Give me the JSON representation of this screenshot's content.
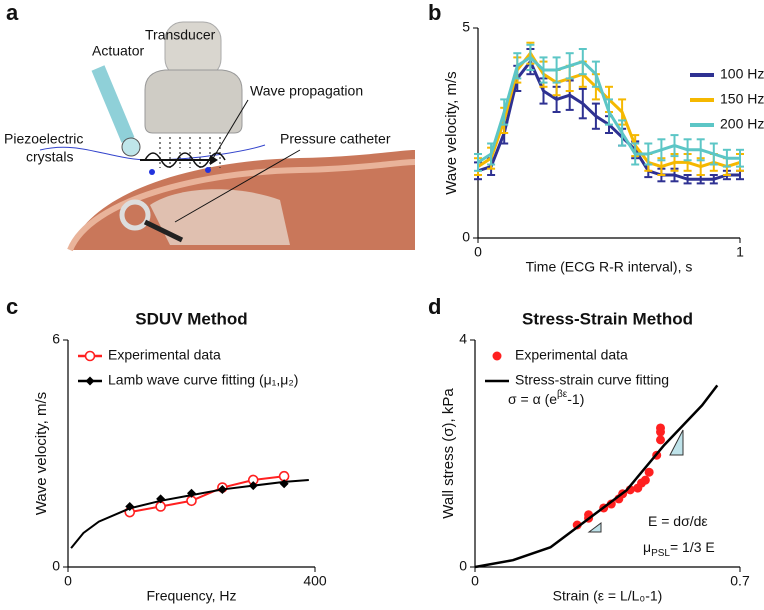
{
  "panel_labels": [
    "a",
    "b",
    "c",
    "d"
  ],
  "diagram": {
    "transducer": "Transducer",
    "actuator": "Actuator",
    "wave": "Wave propagation",
    "piezo": [
      "Piezoelectric",
      "crystals"
    ],
    "catheter": "Pressure catheter"
  },
  "chart_data": [
    {
      "type": "line",
      "xlabel": "Time (ECG R-R interval), s",
      "ylabel": "Wave velocity, m/s",
      "x": [
        0,
        0.05,
        0.1,
        0.15,
        0.2,
        0.25,
        0.3,
        0.35,
        0.4,
        0.45,
        0.5,
        0.55,
        0.6,
        0.65,
        0.7,
        0.75,
        0.8,
        0.85,
        0.9,
        0.95,
        1
      ],
      "xlim": [
        0,
        1
      ],
      "xticks": [
        0,
        1
      ],
      "ylim": [
        0,
        5
      ],
      "yticks": [
        0,
        5
      ],
      "legend": "upper right",
      "series": [
        {
          "name": "100 Hz",
          "color": "#2e3192",
          "marker": "none",
          "line": true,
          "values": [
            1.6,
            1.7,
            2.5,
            3.8,
            4.2,
            3.5,
            3.3,
            3.4,
            3.2,
            2.9,
            2.7,
            2.4,
            2.1,
            1.6,
            1.5,
            1.5,
            1.4,
            1.4,
            1.4,
            1.5,
            1.5
          ],
          "errors": [
            0.2,
            0.2,
            0.25,
            0.3,
            0.3,
            0.3,
            0.3,
            0.35,
            0.35,
            0.3,
            0.2,
            0.2,
            0.2,
            0.15,
            0.15,
            0.15,
            0.1,
            0.1,
            0.1,
            0.1,
            0.1
          ]
        },
        {
          "name": "150 Hz",
          "color": "#f5b800",
          "marker": "none",
          "line": true,
          "values": [
            1.7,
            1.9,
            2.8,
            4.0,
            4.4,
            3.9,
            3.7,
            3.8,
            3.9,
            3.6,
            3.3,
            3.0,
            2.2,
            1.8,
            1.7,
            1.8,
            1.8,
            1.7,
            1.8,
            1.7,
            1.8
          ],
          "errors": [
            0.2,
            0.25,
            0.3,
            0.3,
            0.25,
            0.3,
            0.3,
            0.3,
            0.3,
            0.3,
            0.3,
            0.3,
            0.25,
            0.2,
            0.2,
            0.2,
            0.2,
            0.2,
            0.2,
            0.2,
            0.2
          ]
        },
        {
          "name": "200 Hz",
          "color": "#5cc6c6",
          "marker": "none",
          "line": true,
          "values": [
            1.8,
            2.0,
            3.0,
            4.1,
            4.3,
            4.0,
            4.0,
            4.1,
            4.2,
            3.9,
            3.0,
            2.5,
            2.0,
            2.0,
            2.1,
            2.2,
            2.1,
            2.1,
            2.0,
            1.9,
            1.9
          ],
          "errors": [
            0.2,
            0.25,
            0.3,
            0.3,
            0.3,
            0.3,
            0.3,
            0.3,
            0.3,
            0.3,
            0.3,
            0.3,
            0.25,
            0.25,
            0.25,
            0.25,
            0.25,
            0.25,
            0.25,
            0.2,
            0.2
          ]
        }
      ]
    },
    {
      "type": "line",
      "title": "SDUV Method",
      "xlabel": "Frequency, Hz",
      "ylabel": "Wave velocity, m/s",
      "x": [
        100,
        150,
        200,
        250,
        300,
        350
      ],
      "xlim": [
        0,
        400
      ],
      "xticks": [
        0,
        400
      ],
      "ylim": [
        0,
        6
      ],
      "yticks": [
        0,
        6
      ],
      "legend": "upper left",
      "series": [
        {
          "name": "Experimental data",
          "color": "#ff2020",
          "marker": "circle-open",
          "line": true,
          "values": [
            1.45,
            1.6,
            1.75,
            2.1,
            2.3,
            2.4
          ]
        },
        {
          "name": "Lamb wave curve fitting (μ₁,μ₂)",
          "color": "#000000",
          "marker": "diamond",
          "line": false,
          "values": [
            1.6,
            1.8,
            1.95,
            2.05,
            2.15,
            2.2
          ],
          "curve_x": [
            5,
            25,
            50,
            100,
            150,
            200,
            250,
            300,
            350,
            390
          ],
          "curve_values": [
            0.5,
            0.9,
            1.2,
            1.55,
            1.75,
            1.9,
            2.05,
            2.15,
            2.25,
            2.3
          ]
        }
      ]
    },
    {
      "type": "scatter",
      "title": "Stress-Strain Method",
      "xlabel": "Strain (ε = L/L₀-1)",
      "ylabel": "Wall stress (σ), kPa",
      "xlim": [
        0,
        0.7
      ],
      "xticks": [
        0,
        0.7
      ],
      "ylim": [
        0,
        4
      ],
      "yticks": [
        0,
        4
      ],
      "legend": "upper left",
      "series": [
        {
          "name": "Experimental data",
          "color": "#ff2020",
          "marker": "dot",
          "line": false,
          "x": [
            0.27,
            0.3,
            0.3,
            0.34,
            0.36,
            0.38,
            0.39,
            0.41,
            0.43,
            0.44,
            0.45,
            0.46,
            0.48,
            0.49,
            0.49,
            0.49
          ],
          "values": [
            0.74,
            0.86,
            0.92,
            1.04,
            1.11,
            1.2,
            1.29,
            1.36,
            1.39,
            1.48,
            1.53,
            1.67,
            1.97,
            2.24,
            2.38,
            2.45
          ]
        },
        {
          "name": "Stress-strain curve fitting",
          "color": "#000000",
          "marker": "none",
          "line": true,
          "x": [
            0,
            0.1,
            0.2,
            0.3,
            0.4,
            0.5,
            0.6,
            0.64
          ],
          "values": [
            0,
            0.12,
            0.35,
            0.85,
            1.35,
            2.15,
            2.85,
            3.2
          ]
        }
      ],
      "annotations": [
        {
          "text": "σ = α (e",
          "sup": "βε",
          "tail": "-1)"
        },
        {
          "text": "E = dσ/dε"
        },
        {
          "text": "μ",
          "sub": "PSL",
          "tail": "= 1/3 E"
        }
      ]
    }
  ]
}
